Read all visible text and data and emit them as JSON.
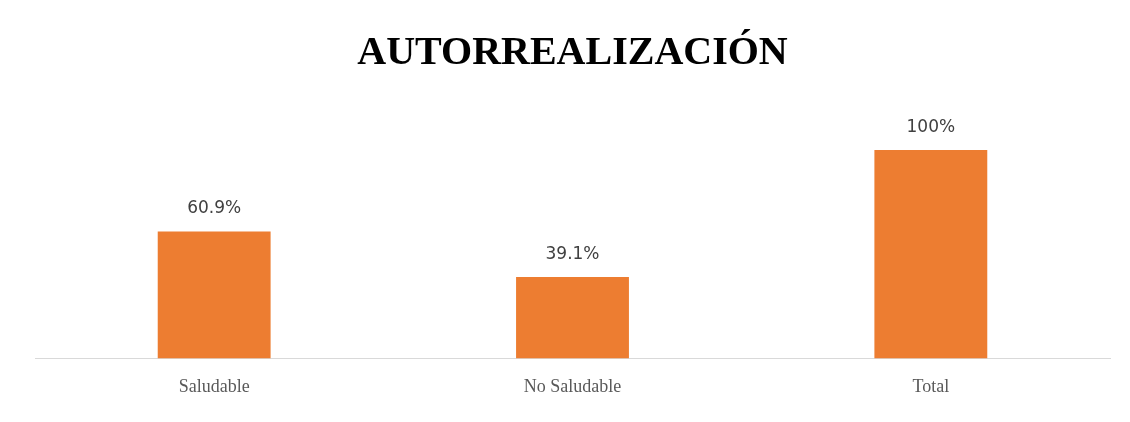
{
  "chart_data": {
    "type": "bar",
    "title": "AUTORREALIZACIÓN",
    "categories": [
      "Saludable",
      "No Saludable",
      "Total"
    ],
    "values": [
      60.9,
      39.1,
      100
    ],
    "value_labels": [
      "60.9%",
      "39.1%",
      "100%"
    ],
    "color": "#ed7d31",
    "ylim": [
      0,
      100
    ],
    "tick_labels": "x",
    "grid": false,
    "legend": false
  }
}
